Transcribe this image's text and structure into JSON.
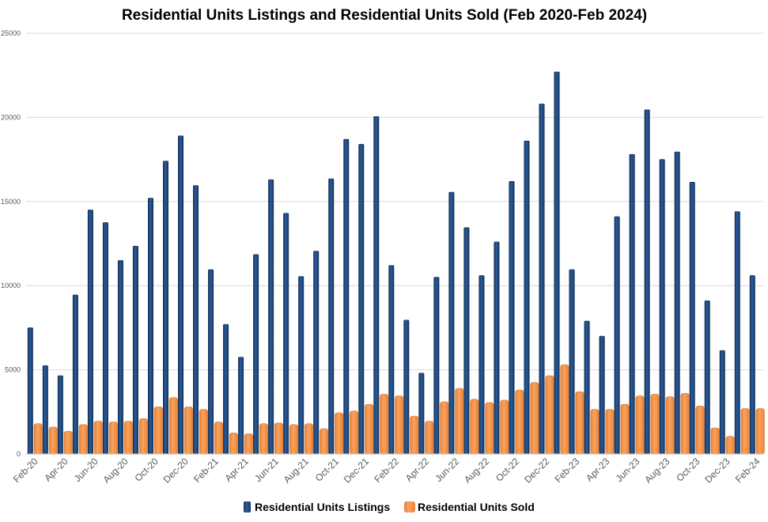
{
  "chart_data": {
    "type": "bar",
    "title": "Residential Units Listings and Residential Units Sold (Feb 2020-Feb 2024)",
    "xlabel": "",
    "ylabel": "",
    "ylim": [
      0,
      25000
    ],
    "yticks": [
      0,
      5000,
      10000,
      15000,
      20000,
      25000
    ],
    "grid": true,
    "legend_position": "bottom",
    "categories": [
      "Feb-20",
      "Mar-20",
      "Apr-20",
      "May-20",
      "Jun-20",
      "Jul-20",
      "Aug-20",
      "Sep-20",
      "Oct-20",
      "Nov-20",
      "Dec-20",
      "Jan-21",
      "Feb-21",
      "Mar-21",
      "Apr-21",
      "May-21",
      "Jun-21",
      "Jul-21",
      "Aug-21",
      "Sep-21",
      "Oct-21",
      "Nov-21",
      "Dec-21",
      "Jan-22",
      "Feb-22",
      "Mar-22",
      "Apr-22",
      "May-22",
      "Jun-22",
      "Jul-22",
      "Aug-22",
      "Sep-22",
      "Oct-22",
      "Nov-22",
      "Dec-22",
      "Jan-23",
      "Feb-23",
      "Mar-23",
      "Apr-23",
      "May-23",
      "Jun-23",
      "Jul-23",
      "Aug-23",
      "Sep-23",
      "Oct-23",
      "Nov-23",
      "Dec-23",
      "Jan-24",
      "Feb-24"
    ],
    "tick_labels": [
      "Feb-20",
      "Apr-20",
      "Jun-20",
      "Aug-20",
      "Oct-20",
      "Dec-20",
      "Feb-21",
      "Apr-21",
      "Jun-21",
      "Aug-21",
      "Oct-21",
      "Dec-21",
      "Feb-22",
      "Apr-22",
      "Jun-22",
      "Aug-22",
      "Oct-22",
      "Dec-22",
      "Feb-23",
      "Apr-23",
      "Jun-23",
      "Aug-23",
      "Oct-23",
      "Dec-23",
      "Feb-24"
    ],
    "series": [
      {
        "name": "Residential Units Listings",
        "color": "#1f4e8c",
        "values": [
          7500,
          5250,
          4650,
          9450,
          14500,
          13750,
          11500,
          12350,
          15200,
          17400,
          18900,
          15950,
          10950,
          7700,
          5750,
          11850,
          16300,
          14300,
          10550,
          12050,
          16350,
          18700,
          18400,
          20050,
          11200,
          7950,
          4800,
          10500,
          15550,
          13450,
          10600,
          12600,
          16200,
          18600,
          20800,
          22700,
          10950,
          7900,
          7000,
          14100,
          17800,
          20450,
          17500,
          17950,
          16150,
          9100,
          6150,
          14400,
          10600
        ]
      },
      {
        "name": "Residential Units Sold",
        "color": "#f79646",
        "values": [
          1800,
          1600,
          1350,
          1750,
          1950,
          1900,
          1950,
          2100,
          2800,
          3350,
          2800,
          2650,
          1900,
          1250,
          1200,
          1800,
          1850,
          1750,
          1800,
          1500,
          2450,
          2550,
          2950,
          3550,
          3450,
          2250,
          1950,
          3100,
          3900,
          3250,
          3050,
          3200,
          3800,
          4250,
          4650,
          5300,
          3700,
          2650,
          2650,
          2950,
          3450,
          3550,
          3400,
          3600,
          2850,
          1550,
          1050,
          2700,
          2700
        ]
      }
    ]
  }
}
